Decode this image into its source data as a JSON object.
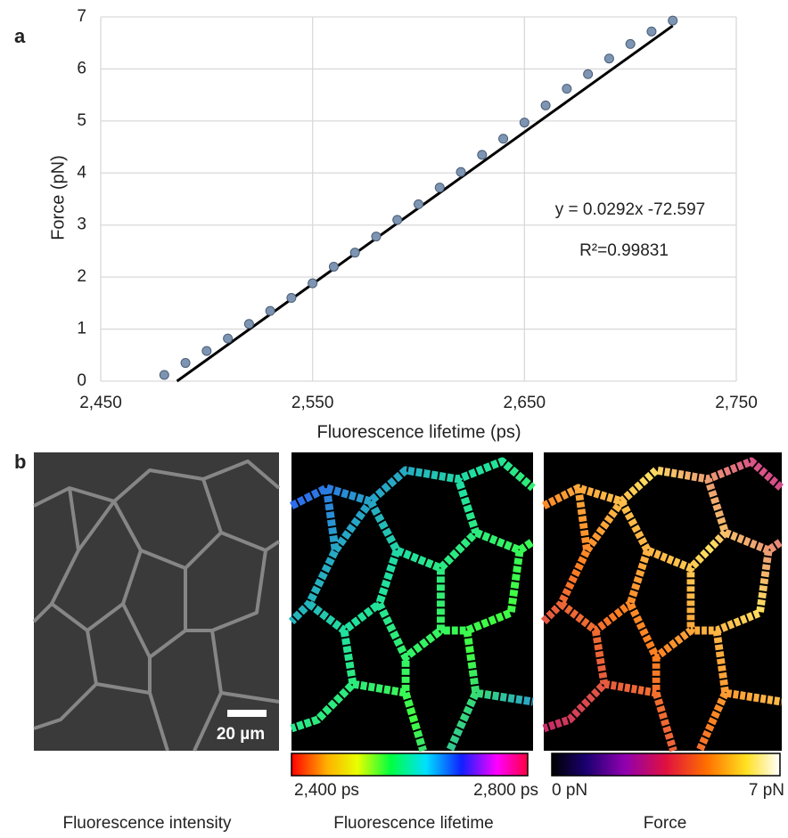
{
  "panel_labels": [
    "a",
    "b"
  ],
  "chart_data": {
    "type": "scatter",
    "x_label": "Fluorescence lifetime (ps)",
    "y_label": "Force (pN)",
    "x": [
      2480,
      2490,
      2500,
      2510,
      2520,
      2530,
      2540,
      2550,
      2560,
      2570,
      2580,
      2590,
      2600,
      2610,
      2620,
      2630,
      2640,
      2650,
      2660,
      2670,
      2680,
      2690,
      2700,
      2710,
      2720
    ],
    "values": [
      0.12,
      0.35,
      0.58,
      0.82,
      1.1,
      1.35,
      1.6,
      1.88,
      2.2,
      2.47,
      2.78,
      3.1,
      3.4,
      3.72,
      4.02,
      4.35,
      4.66,
      4.97,
      5.3,
      5.62,
      5.9,
      6.2,
      6.48,
      6.72,
      6.93
    ],
    "color": "#7d95b3",
    "trendline": {
      "x": [
        2486,
        2720
      ],
      "values": [
        0,
        6.83
      ],
      "color": "#000000"
    },
    "annotations": [
      "y = 0.0292x -72.597",
      "R²=0.99831"
    ],
    "xlim": [
      2450,
      2750
    ],
    "xticks": [
      {
        "value": 2450,
        "label": "2,450"
      },
      {
        "value": 2550,
        "label": "2,550"
      },
      {
        "value": 2650,
        "label": "2,650"
      },
      {
        "value": 2750,
        "label": "2,750"
      }
    ],
    "ylim": [
      0,
      7
    ],
    "yticks": [
      0,
      1,
      2,
      3,
      4,
      5,
      6,
      7
    ],
    "grid": true
  },
  "images": [
    {
      "caption": "Fluorescence intensity",
      "scale_bar": "20 µm"
    },
    {
      "caption": "Fluorescence lifetime",
      "colorbar_labels": [
        "2,400 ps",
        "2,800 ps"
      ]
    },
    {
      "caption": "Force",
      "colorbar_labels": [
        "0 pN",
        "7 pN"
      ]
    }
  ]
}
